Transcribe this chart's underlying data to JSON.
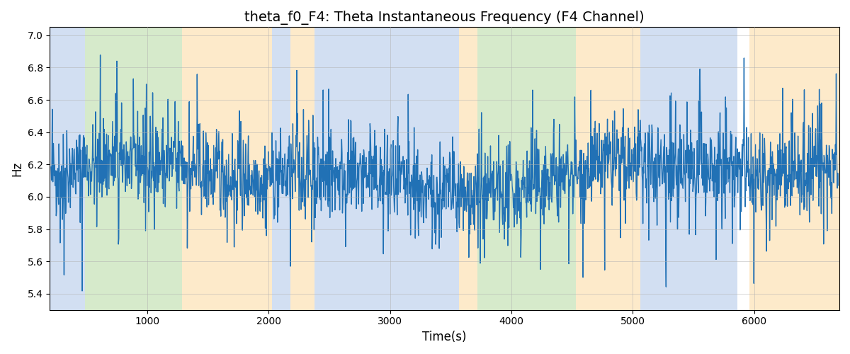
{
  "title": "theta_f0_F4: Theta Instantaneous Frequency (F4 Channel)",
  "xlabel": "Time(s)",
  "ylabel": "Hz",
  "ylim": [
    5.3,
    7.05
  ],
  "xlim": [
    200,
    6700
  ],
  "yticks": [
    5.4,
    5.6,
    5.8,
    6.0,
    6.2,
    6.4,
    6.6,
    6.8,
    7.0
  ],
  "xticks": [
    1000,
    2000,
    3000,
    4000,
    5000,
    6000
  ],
  "line_color": "#2171b5",
  "line_width": 1.0,
  "figsize": [
    12.0,
    5.0
  ],
  "dpi": 100,
  "bg_regions": [
    {
      "xmin": 200,
      "xmax": 490,
      "color": "#aec6e8",
      "alpha": 0.55
    },
    {
      "xmin": 490,
      "xmax": 1290,
      "color": "#b5d9a1",
      "alpha": 0.55
    },
    {
      "xmin": 1290,
      "xmax": 2030,
      "color": "#fdd9a0",
      "alpha": 0.55
    },
    {
      "xmin": 2030,
      "xmax": 2180,
      "color": "#aec6e8",
      "alpha": 0.55
    },
    {
      "xmin": 2180,
      "xmax": 2380,
      "color": "#fdd9a0",
      "alpha": 0.55
    },
    {
      "xmin": 2380,
      "xmax": 2560,
      "color": "#aec6e8",
      "alpha": 0.55
    },
    {
      "xmin": 2560,
      "xmax": 3570,
      "color": "#aec6e8",
      "alpha": 0.55
    },
    {
      "xmin": 3570,
      "xmax": 3720,
      "color": "#fdd9a0",
      "alpha": 0.55
    },
    {
      "xmin": 3720,
      "xmax": 4530,
      "color": "#b5d9a1",
      "alpha": 0.55
    },
    {
      "xmin": 4530,
      "xmax": 4680,
      "color": "#fdd9a0",
      "alpha": 0.55
    },
    {
      "xmin": 4680,
      "xmax": 5060,
      "color": "#fdd9a0",
      "alpha": 0.55
    },
    {
      "xmin": 5060,
      "xmax": 5860,
      "color": "#aec6e8",
      "alpha": 0.55
    },
    {
      "xmin": 5960,
      "xmax": 6700,
      "color": "#fdd9a0",
      "alpha": 0.55
    }
  ],
  "seed": 42,
  "n_points": 2000,
  "x_start": 210,
  "x_end": 6690,
  "mean_freq": 6.12,
  "noise_scale": 0.13,
  "spike_count": 200,
  "spike_max": 0.55,
  "grid_color": "#b0b0b0",
  "grid_alpha": 0.7,
  "grid_linewidth": 0.5,
  "title_fontsize": 14,
  "axis_label_fontsize": 12
}
